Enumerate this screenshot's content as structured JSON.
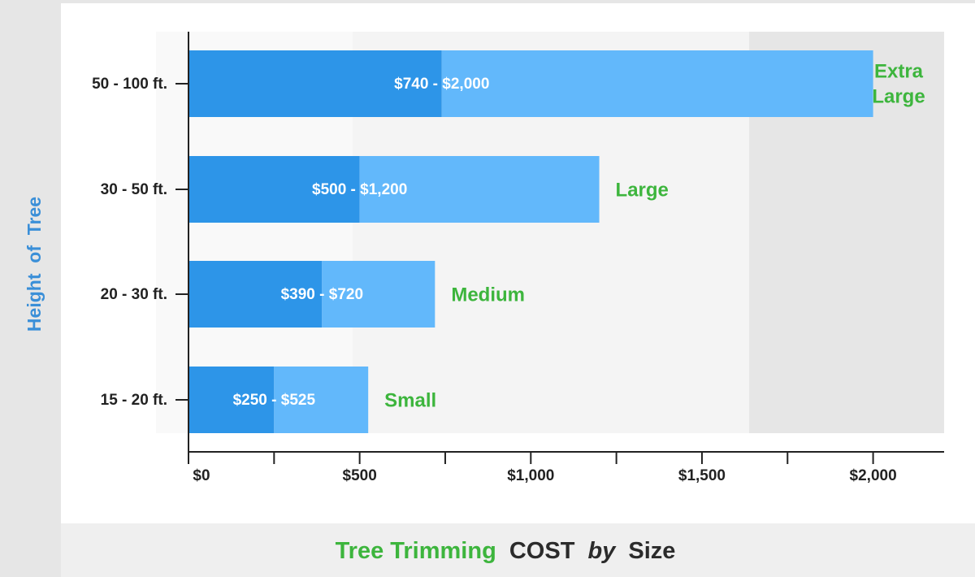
{
  "title": {
    "part1": "Tree Trimming",
    "part2": "COST",
    "part3": "by",
    "part4": "Size"
  },
  "chart_data": {
    "type": "bar",
    "orientation": "horizontal",
    "stacked": true,
    "ylabel": "Height  of  Tree",
    "xlabel": "",
    "xlim": [
      0,
      2200
    ],
    "xticks": [
      0,
      500,
      1000,
      1500,
      2000
    ],
    "xtick_labels": [
      "$0",
      "$500",
      "$1,000",
      "$1,500",
      "$2,000"
    ],
    "categories": [
      "50 - 100 ft.",
      "30 - 50 ft.",
      "20 - 30 ft.",
      "15 - 20 ft."
    ],
    "size_labels": [
      "Extra Large",
      "Large",
      "Medium",
      "Small"
    ],
    "range_labels": [
      "$740 - $2,000",
      "$500 - $1,200",
      "$390 - $720",
      "$250 - $525"
    ],
    "low": [
      740,
      500,
      390,
      250
    ],
    "high": [
      2000,
      1200,
      720,
      525
    ],
    "series": [
      {
        "values": [
          740,
          500,
          390,
          250
        ]
      },
      {
        "values": [
          1260,
          700,
          330,
          275
        ]
      }
    ],
    "legend": "none",
    "grid": false,
    "colors": {
      "low": "#2d95e8",
      "high": "#62b8fb",
      "size_label": "#3db53d",
      "ylabel": "#3a8fd8",
      "axis": "#222222",
      "tick_text": "#222222",
      "band_1": "#ffffff",
      "band_2": "#f9f9f9",
      "band_3": "#f4f4f4",
      "band_4": "#e6e6e6"
    }
  }
}
